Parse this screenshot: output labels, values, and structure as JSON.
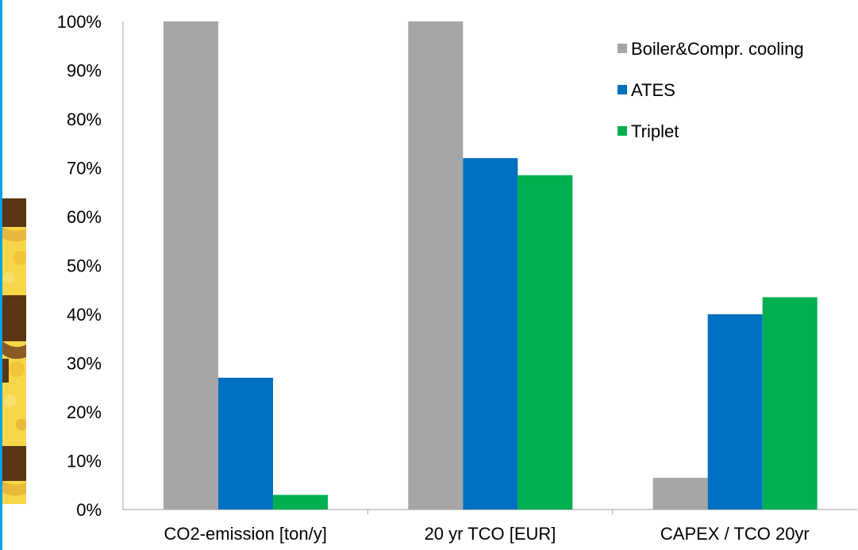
{
  "colors": {
    "border": "#00a2e8",
    "boiler": "#a6a6a6",
    "ates": "#0070c0",
    "triplet": "#00b050",
    "axis": "#bfbfbf"
  },
  "chart_data": {
    "type": "bar",
    "title": "",
    "xlabel": "",
    "ylabel": "",
    "categories": [
      "CO2-emission [ton/y]",
      "20 yr TCO [EUR]",
      "CAPEX / TCO 20yr"
    ],
    "y_ticks": [
      "0%",
      "10%",
      "20%",
      "30%",
      "40%",
      "50%",
      "60%",
      "70%",
      "80%",
      "90%",
      "100%"
    ],
    "ylim": [
      0,
      100
    ],
    "unit": "%",
    "grid": false,
    "legend_position": "top-right",
    "series": [
      {
        "name": "Boiler&Compr. cooling",
        "color": "#a6a6a6",
        "values": [
          100,
          100,
          6.5
        ]
      },
      {
        "name": "ATES",
        "color": "#0070c0",
        "values": [
          27,
          72,
          40
        ]
      },
      {
        "name": "Triplet",
        "color": "#00b050",
        "values": [
          3,
          68.5,
          43.5
        ]
      }
    ]
  }
}
